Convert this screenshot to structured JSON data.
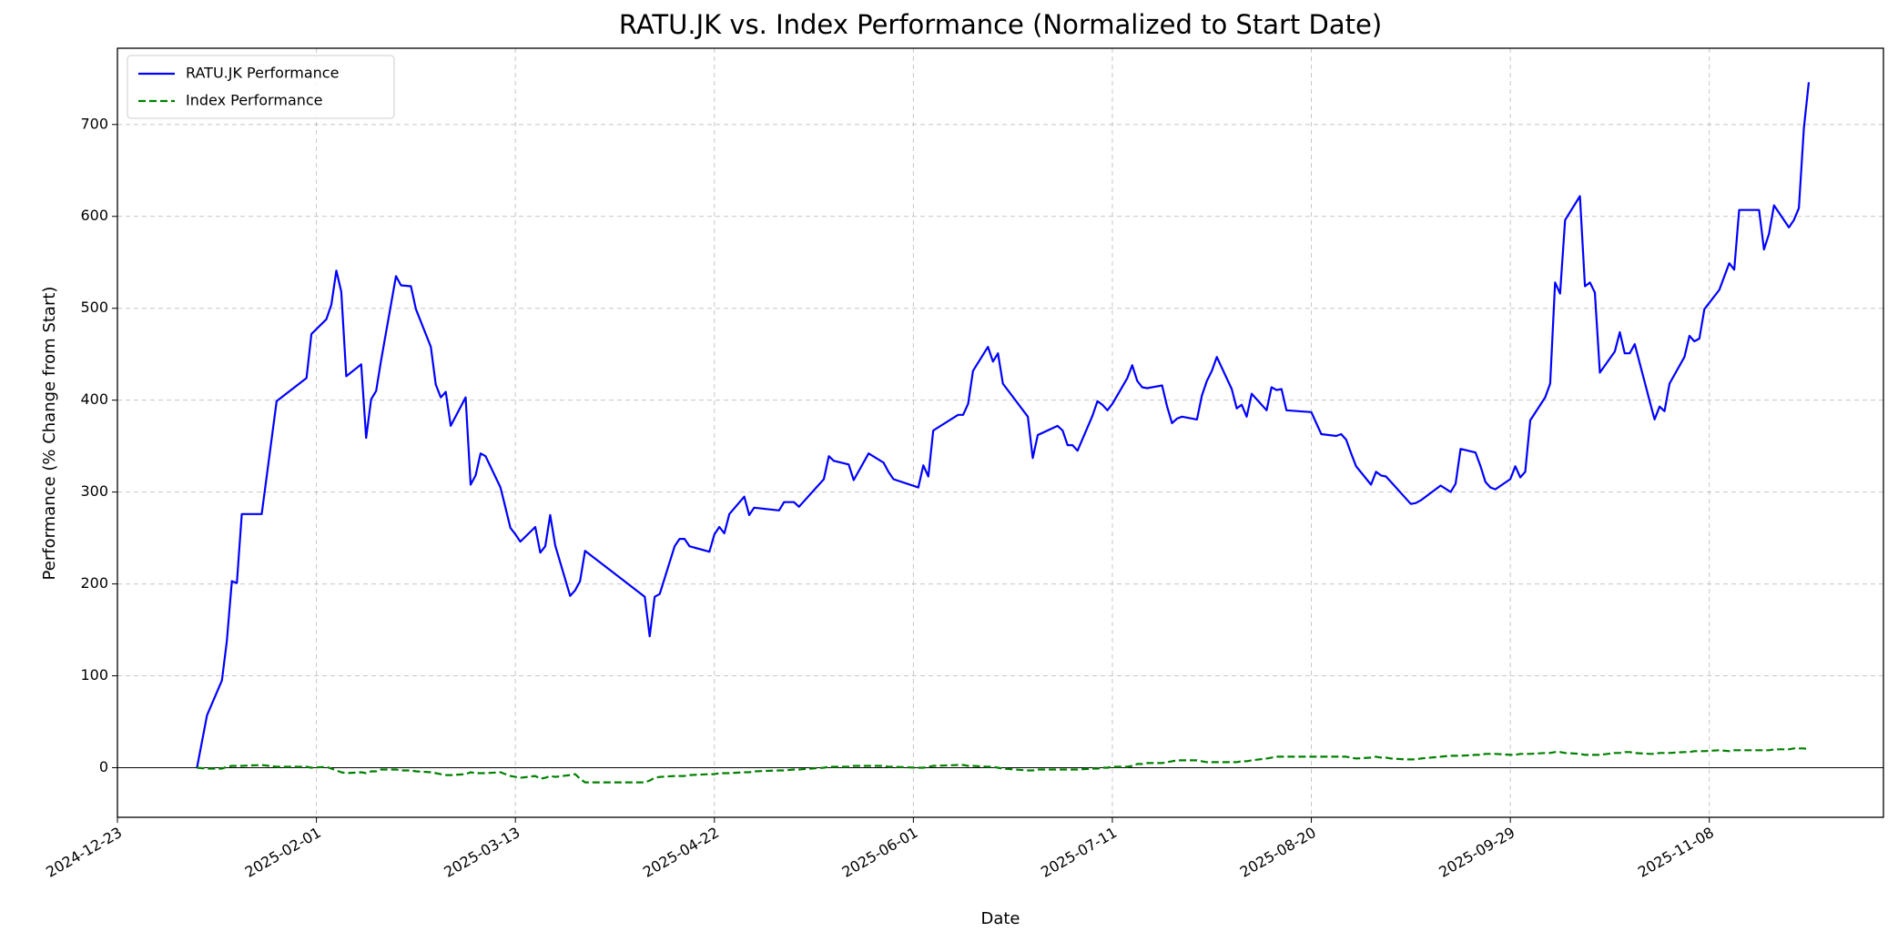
{
  "chart_data": {
    "type": "line",
    "title": "RATU.JK vs. Index Performance (Normalized to Start Date)",
    "x_label": "Date",
    "y_label": "Performance (% Change from Start)",
    "x": [
      "2025-01-08",
      "2025-01-10",
      "2025-01-13",
      "2025-01-14",
      "2025-01-15",
      "2025-01-16",
      "2025-01-17",
      "2025-01-21",
      "2025-01-24",
      "2025-01-30",
      "2025-01-31",
      "2025-02-03",
      "2025-02-04",
      "2025-02-05",
      "2025-02-06",
      "2025-02-07",
      "2025-02-10",
      "2025-02-11",
      "2025-02-12",
      "2025-02-13",
      "2025-02-14",
      "2025-02-17",
      "2025-02-18",
      "2025-02-20",
      "2025-02-21",
      "2025-02-24",
      "2025-02-25",
      "2025-02-26",
      "2025-02-27",
      "2025-02-28",
      "2025-03-03",
      "2025-03-04",
      "2025-03-05",
      "2025-03-06",
      "2025-03-07",
      "2025-03-10",
      "2025-03-11",
      "2025-03-12",
      "2025-03-13",
      "2025-03-14",
      "2025-03-17",
      "2025-03-18",
      "2025-03-19",
      "2025-03-20",
      "2025-03-21",
      "2025-03-24",
      "2025-03-25",
      "2025-03-26",
      "2025-03-27",
      "2025-04-08",
      "2025-04-09",
      "2025-04-10",
      "2025-04-11",
      "2025-04-14",
      "2025-04-15",
      "2025-04-16",
      "2025-04-17",
      "2025-04-21",
      "2025-04-22",
      "2025-04-23",
      "2025-04-24",
      "2025-04-25",
      "2025-04-28",
      "2025-04-29",
      "2025-04-30",
      "2025-05-05",
      "2025-05-06",
      "2025-05-08",
      "2025-05-09",
      "2025-05-14",
      "2025-05-15",
      "2025-05-16",
      "2025-05-19",
      "2025-05-20",
      "2025-05-23",
      "2025-05-26",
      "2025-05-27",
      "2025-05-28",
      "2025-06-02",
      "2025-06-03",
      "2025-06-04",
      "2025-06-05",
      "2025-06-10",
      "2025-06-11",
      "2025-06-12",
      "2025-06-13",
      "2025-06-16",
      "2025-06-17",
      "2025-06-18",
      "2025-06-19",
      "2025-06-24",
      "2025-06-25",
      "2025-06-26",
      "2025-06-30",
      "2025-07-01",
      "2025-07-02",
      "2025-07-03",
      "2025-07-04",
      "2025-07-07",
      "2025-07-08",
      "2025-07-09",
      "2025-07-10",
      "2025-07-11",
      "2025-07-14",
      "2025-07-15",
      "2025-07-16",
      "2025-07-17",
      "2025-07-18",
      "2025-07-21",
      "2025-07-22",
      "2025-07-23",
      "2025-07-24",
      "2025-07-25",
      "2025-07-28",
      "2025-07-29",
      "2025-07-30",
      "2025-07-31",
      "2025-08-01",
      "2025-08-04",
      "2025-08-05",
      "2025-08-06",
      "2025-08-07",
      "2025-08-08",
      "2025-08-11",
      "2025-08-12",
      "2025-08-13",
      "2025-08-14",
      "2025-08-15",
      "2025-08-20",
      "2025-08-22",
      "2025-08-25",
      "2025-08-26",
      "2025-08-27",
      "2025-08-28",
      "2025-08-29",
      "2025-09-01",
      "2025-09-02",
      "2025-09-03",
      "2025-09-04",
      "2025-09-05",
      "2025-09-08",
      "2025-09-09",
      "2025-09-10",
      "2025-09-11",
      "2025-09-15",
      "2025-09-17",
      "2025-09-18",
      "2025-09-19",
      "2025-09-22",
      "2025-09-23",
      "2025-09-24",
      "2025-09-25",
      "2025-09-26",
      "2025-09-29",
      "2025-09-30",
      "2025-10-01",
      "2025-10-02",
      "2025-10-03",
      "2025-10-06",
      "2025-10-07",
      "2025-10-08",
      "2025-10-09",
      "2025-10-10",
      "2025-10-13",
      "2025-10-14",
      "2025-10-15",
      "2025-10-16",
      "2025-10-17",
      "2025-10-20",
      "2025-10-21",
      "2025-10-22",
      "2025-10-23",
      "2025-10-24",
      "2025-10-27",
      "2025-10-28",
      "2025-10-29",
      "2025-10-30",
      "2025-10-31",
      "2025-11-03",
      "2025-11-04",
      "2025-11-05",
      "2025-11-06",
      "2025-11-07",
      "2025-11-10",
      "2025-11-12",
      "2025-11-13",
      "2025-11-14",
      "2025-11-18",
      "2025-11-19",
      "2025-11-20",
      "2025-11-21",
      "2025-11-24",
      "2025-11-25",
      "2025-11-26",
      "2025-11-27",
      "2025-11-28"
    ],
    "series": [
      {
        "name": "RATU.JK Performance",
        "color": "#0000ff",
        "dash": "solid",
        "values": [
          0,
          57,
          95,
          138,
          203,
          201,
          276,
          276,
          399,
          424,
          472,
          488,
          504,
          541,
          518,
          426,
          439,
          359,
          401,
          410,
          443,
          535,
          525,
          524,
          499,
          458,
          417,
          403,
          409,
          372,
          403,
          308,
          318,
          342,
          339,
          305,
          283,
          261,
          254,
          246,
          262,
          234,
          241,
          275,
          242,
          187,
          193,
          203,
          236,
          186,
          143,
          186,
          189,
          241,
          249,
          249,
          241,
          235,
          254,
          262,
          255,
          276,
          295,
          275,
          283,
          280,
          289,
          289,
          284,
          314,
          339,
          334,
          330,
          313,
          342,
          332,
          322,
          314,
          305,
          329,
          317,
          367,
          384,
          384,
          396,
          432,
          458,
          442,
          451,
          418,
          382,
          337,
          362,
          372,
          367,
          351,
          351,
          345,
          383,
          399,
          395,
          389,
          396,
          424,
          438,
          421,
          414,
          413,
          416,
          393,
          375,
          380,
          382,
          379,
          405,
          421,
          432,
          447,
          412,
          391,
          395,
          382,
          407,
          389,
          414,
          411,
          412,
          389,
          387,
          363,
          361,
          363,
          357,
          342,
          328,
          308,
          322,
          318,
          317,
          311,
          293,
          287,
          288,
          291,
          307,
          300,
          309,
          347,
          343,
          328,
          311,
          305,
          303,
          314,
          328,
          316,
          322,
          378,
          403,
          418,
          528,
          516,
          596,
          622,
          524,
          528,
          517,
          430,
          453,
          474,
          451,
          451,
          461,
          399,
          379,
          393,
          388,
          418,
          447,
          470,
          464,
          467,
          499,
          520,
          549,
          542,
          607,
          607,
          564,
          581,
          612,
          588,
          596,
          609,
          696,
          746
        ]
      },
      {
        "name": "Index Performance",
        "color": "#008000",
        "dash": "dashed",
        "values": [
          0,
          -1,
          -1,
          1,
          2,
          2,
          2,
          3,
          1,
          1,
          0,
          1,
          -1,
          -3,
          -5,
          -6,
          -5,
          -6,
          -4,
          -4,
          -2,
          -2,
          -3,
          -3,
          -4,
          -5,
          -6,
          -7,
          -8,
          -8,
          -7,
          -5,
          -6,
          -6,
          -6,
          -5,
          -7,
          -9,
          -10,
          -11,
          -9,
          -12,
          -11,
          -9,
          -10,
          -8,
          -7,
          -12,
          -16,
          -16,
          -14,
          -11,
          -10,
          -9,
          -9,
          -9,
          -8,
          -7,
          -7,
          -6,
          -6,
          -6,
          -5,
          -5,
          -4,
          -3,
          -3,
          -2,
          -2,
          0,
          1,
          1,
          1,
          2,
          2,
          2,
          1,
          1,
          0,
          0,
          1,
          2,
          3,
          3,
          2,
          2,
          1,
          1,
          0,
          -1,
          -3,
          -3,
          -2,
          -2,
          -2,
          -2,
          -2,
          -2,
          -1,
          -1,
          0,
          0,
          1,
          1,
          2,
          4,
          4,
          5,
          5,
          6,
          7,
          8,
          8,
          8,
          7,
          6,
          6,
          6,
          6,
          6,
          7,
          7,
          8,
          10,
          11,
          12,
          12,
          12,
          12,
          12,
          12,
          12,
          12,
          11,
          10,
          11,
          12,
          11,
          11,
          10,
          9,
          9,
          9,
          10,
          12,
          13,
          13,
          13,
          14,
          14,
          15,
          15,
          15,
          14,
          14,
          15,
          15,
          15,
          16,
          16,
          17,
          17,
          16,
          15,
          14,
          14,
          14,
          14,
          16,
          16,
          17,
          17,
          16,
          15,
          15,
          16,
          16,
          16,
          17,
          17,
          18,
          18,
          18,
          19,
          18,
          19,
          19,
          19,
          19,
          19,
          20,
          20,
          21,
          21,
          21,
          20
        ]
      }
    ],
    "hline": 0,
    "xlim": [
      "2024-12-23",
      "2025-12-13"
    ],
    "xticks": [
      "2024-12-23",
      "2025-02-01",
      "2025-03-13",
      "2025-04-22",
      "2025-06-01",
      "2025-07-11",
      "2025-08-20",
      "2025-09-29",
      "2025-11-08"
    ],
    "ylim": [
      -54,
      783
    ],
    "yticks": [
      0,
      100,
      200,
      300,
      400,
      500,
      600,
      700
    ],
    "grid": true,
    "legend": "upper left"
  }
}
